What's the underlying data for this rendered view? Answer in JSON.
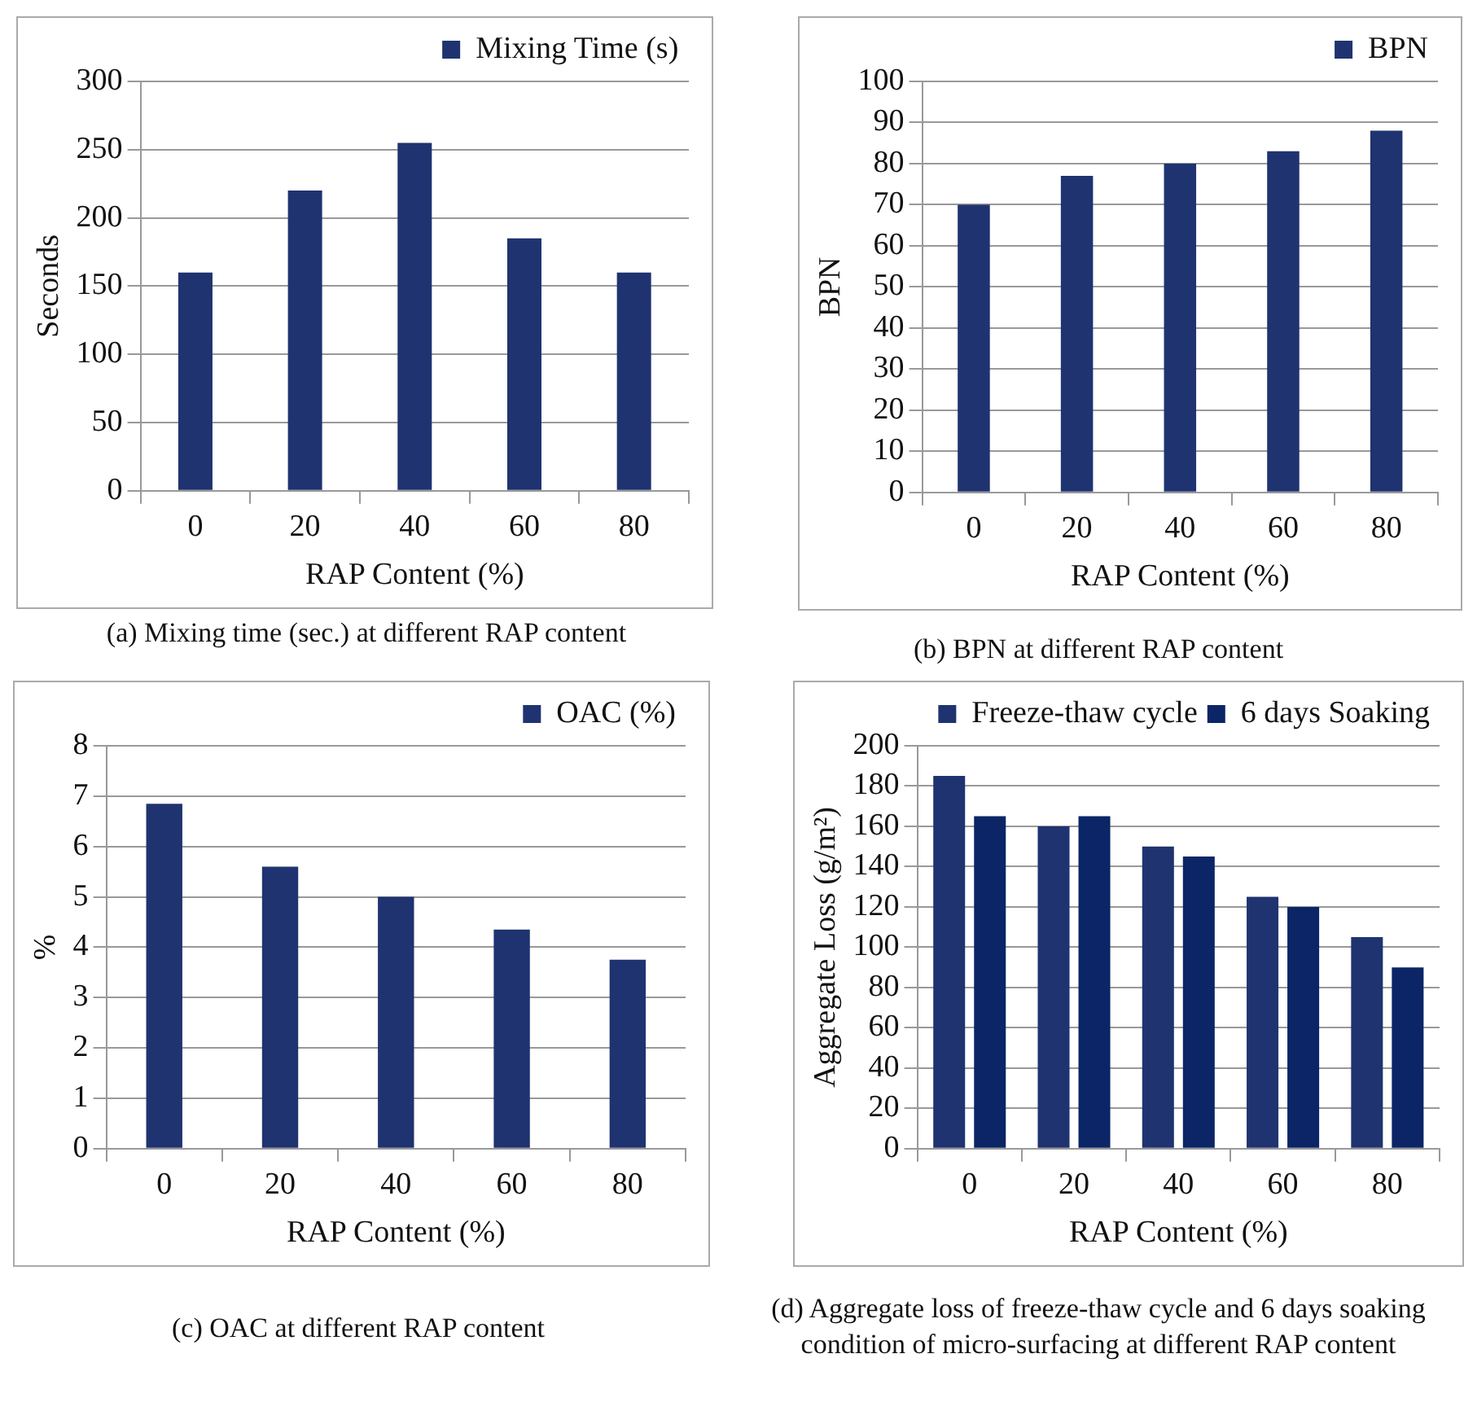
{
  "chart_data": [
    {
      "type": "bar",
      "xlabel": "RAP Content (%)",
      "ylabel": "Seconds",
      "categories": [
        "0",
        "20",
        "40",
        "60",
        "80"
      ],
      "series": [
        {
          "name": "Mixing Time (s)",
          "color": "#1f3370",
          "values": [
            160,
            220,
            255,
            185,
            160
          ]
        }
      ],
      "ylim": [
        0,
        300
      ],
      "yticks": [
        0,
        50,
        100,
        150,
        200,
        250,
        300
      ],
      "grid": "y",
      "legend": "top right",
      "annotations": [
        "(a) Mixing time (sec.) at different RAP content"
      ]
    },
    {
      "type": "bar",
      "xlabel": "RAP Content (%)",
      "ylabel": "BPN",
      "categories": [
        "0",
        "20",
        "40",
        "60",
        "80"
      ],
      "series": [
        {
          "name": "BPN",
          "color": "#1f3370",
          "values": [
            70,
            77,
            80,
            83,
            88
          ]
        }
      ],
      "ylim": [
        0,
        100
      ],
      "yticks": [
        0,
        10,
        20,
        30,
        40,
        50,
        60,
        70,
        80,
        90,
        100
      ],
      "grid": "y",
      "legend": "top right",
      "annotations": [
        "(b) BPN at different RAP content"
      ]
    },
    {
      "type": "bar",
      "xlabel": "RAP Content (%)",
      "ylabel": "%",
      "categories": [
        "0",
        "20",
        "40",
        "60",
        "80"
      ],
      "series": [
        {
          "name": "OAC (%)",
          "color": "#1f3370",
          "values": [
            6.85,
            5.6,
            5.0,
            4.35,
            3.75
          ]
        }
      ],
      "ylim": [
        0,
        8
      ],
      "yticks": [
        0,
        1,
        2,
        3,
        4,
        5,
        6,
        7,
        8
      ],
      "grid": "y",
      "legend": "top right",
      "annotations": [
        "(c) OAC at different RAP content"
      ]
    },
    {
      "type": "bar",
      "xlabel": "RAP Content (%)",
      "ylabel": "Aggregate Loss (g/m²)",
      "categories": [
        "0",
        "20",
        "40",
        "60",
        "80"
      ],
      "series": [
        {
          "name": "Freeze-thaw cycle",
          "color": "#1f3370",
          "values": [
            185,
            160,
            150,
            125,
            105
          ]
        },
        {
          "name": "6 days Soaking",
          "color": "#0b2566",
          "values": [
            165,
            165,
            145,
            120,
            90
          ]
        }
      ],
      "ylim": [
        0,
        200
      ],
      "yticks": [
        0,
        20,
        40,
        60,
        80,
        100,
        120,
        140,
        160,
        180,
        200
      ],
      "grid": "y",
      "legend": "top right",
      "annotations": [
        "(d) Aggregate loss of freeze-thaw cycle and 6 days soaking condition of micro-surfacing at different RAP content"
      ]
    }
  ]
}
